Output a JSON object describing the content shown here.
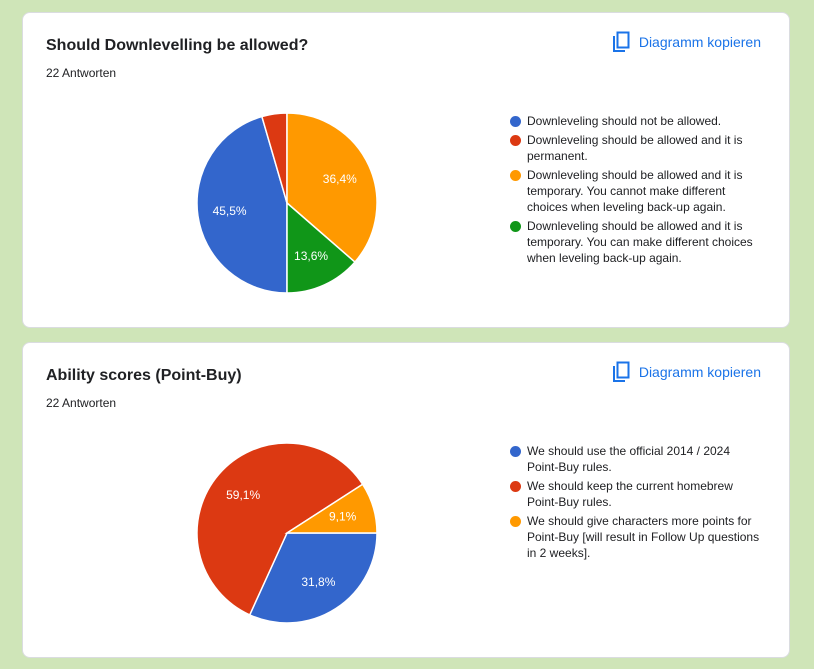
{
  "copy_label": "Diagramm kopieren",
  "chart_data": [
    {
      "type": "pie",
      "title": "Should Downlevelling be allowed?",
      "subtitle": "22 Antworten",
      "start_angle_deg": 90,
      "categories": [
        "Downleveling should not be allowed.",
        "Downleveling should be allowed and it is permanent.",
        "Downleveling should be allowed and it is temporary. You cannot make different choices when leveling back-up again.",
        "Downleveling should be allowed and it is temporary. You can make different choices when leveling back-up again."
      ],
      "values": [
        45.5,
        4.5,
        36.4,
        13.6
      ],
      "labels": [
        "45,5%",
        "",
        "36,4%",
        "13,6%"
      ],
      "colors": [
        "#3366cc",
        "#dc3912",
        "#ff9900",
        "#109618"
      ],
      "legend": "right"
    },
    {
      "type": "pie",
      "title": "Ability scores (Point-Buy)",
      "subtitle": "22 Antworten",
      "start_angle_deg": 0,
      "categories": [
        "We should use the official 2014 / 2024 Point-Buy rules.",
        "We should keep the current homebrew Point-Buy rules.",
        "We should give characters more points for Point-Buy [will result in Follow Up questions in 2 weeks]."
      ],
      "values": [
        31.8,
        59.1,
        9.1
      ],
      "labels": [
        "31,8%",
        "59,1%",
        "9,1%"
      ],
      "colors": [
        "#3366cc",
        "#dc3912",
        "#ff9900"
      ],
      "legend": "right"
    }
  ]
}
